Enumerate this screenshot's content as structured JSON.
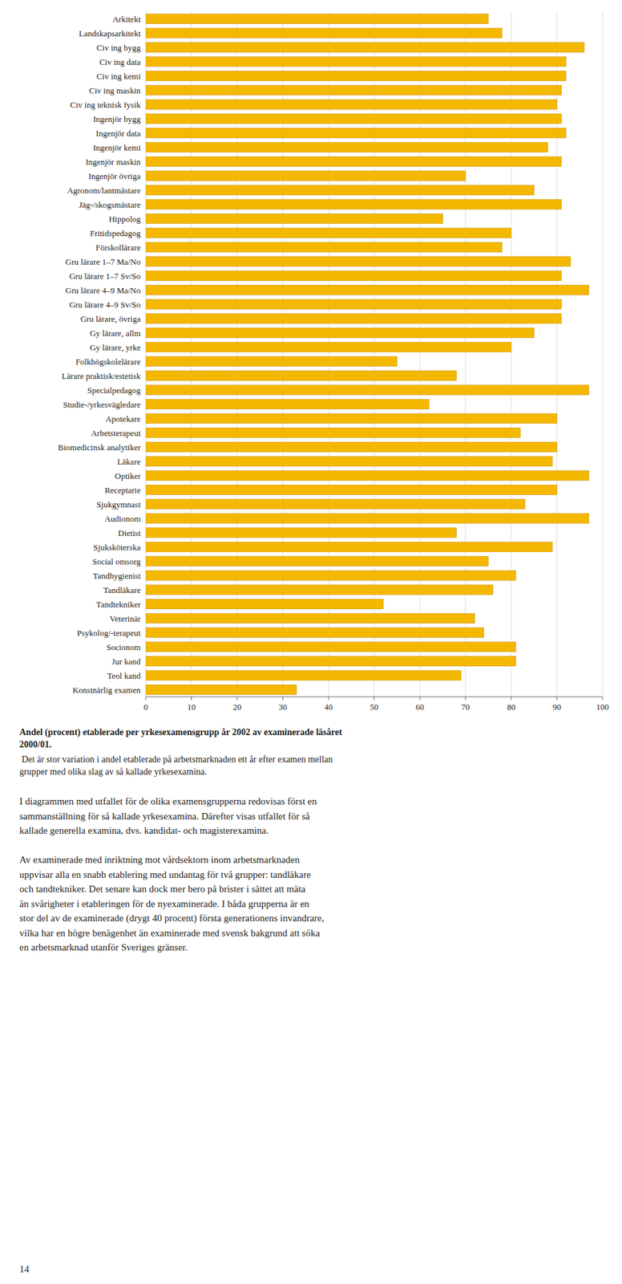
{
  "chart_data": {
    "type": "bar",
    "orientation": "horizontal",
    "title": "Andel (procent) etablerade per yrkesexamensgrupp år 2002 av examinerade läsåret\n2000/01.",
    "subtitle": " Det är stor variation i andel etablerade på arbetsmarknaden ett år efter examen mellan\ngrupper med olika slag av så kallade yrkesexamina.",
    "annotations": [
      "I diagrammen med utfallet för de olika examensgrupperna redovisas först en\nsammanställning för så kallade yrkesexamina. Därefter visas utfallet för så\nkallade generella examina, dvs. kandidat- och magisterexamina.",
      "Av examinerade med inriktning mot vårdsektorn inom arbetsmarknaden\nuppvisar alla en snabb etablering med undantag för två grupper: tandläkare\noch tandtekniker. Det senare kan dock mer bero på brister i sättet att mäta\nän svårigheter i etableringen för de nyexaminerade. I båda grupperna är en\nstor del av de examinerade (drygt 40 procent) första generationens invandrare,\nvilka har en högre benägenhet än examinerade med svensk bakgrund att söka\nen arbetsmarknad utanför Sveriges gränser.",
      "14"
    ],
    "categories": [
      "Arkitekt",
      "Landskapsarkitekt",
      "Civ ing bygg",
      "Civ ing data",
      "Civ ing kemi",
      "Civ ing maskin",
      "Civ ing teknisk fysik",
      "Ingenjör bygg",
      "Ingenjör data",
      "Ingenjör kemi",
      "Ingenjör maskin",
      "Ingenjör övriga",
      "Agronom/lantmästare",
      "Jäg-/skogsmästare",
      "Hippolog",
      "Fritidspedagog",
      "Förskollärare",
      "Gru lärare 1–7 Ma/No",
      "Gru lärare 1–7 Sv/So",
      "Gru lärare 4–9 Ma/No",
      "Gru lärare 4–9 Sv/So",
      "Gru lärare, övriga",
      "Gy lärare, allm",
      "Gy lärare, yrke",
      "Folkhögskolelärare",
      "Lärare praktisk/estetisk",
      "Specialpedagog",
      "Studie-/yrkesvägledare",
      "Apotekare",
      "Arbetsterapeut",
      "Biomedicinsk analytiker",
      "Läkare",
      "Optiker",
      "Receptarie",
      "Sjukgymnast",
      "Audionom",
      "Dietist",
      "Sjuksköterska",
      "Social omsorg",
      "Tandhygienist",
      "Tandläkare",
      "Tandtekniker",
      "Veterinär",
      "Psykolog/-terapeut",
      "Socionom",
      "Jur kand",
      "Teol kand",
      "Konstnärlig examen"
    ],
    "values": [
      75,
      78,
      96,
      92,
      92,
      91,
      90,
      91,
      92,
      88,
      91,
      70,
      85,
      91,
      65,
      80,
      78,
      93,
      91,
      97,
      91,
      91,
      85,
      80,
      55,
      68,
      97,
      62,
      90,
      82,
      90,
      89,
      97,
      90,
      83,
      97,
      68,
      89,
      75,
      81,
      76,
      52,
      72,
      74,
      81,
      81,
      69,
      33
    ],
    "color": "#F5B800",
    "xlim": [
      0,
      100
    ],
    "xticks": [
      0,
      10,
      20,
      30,
      40,
      50,
      60,
      70,
      80,
      90,
      100
    ],
    "grid": true
  }
}
